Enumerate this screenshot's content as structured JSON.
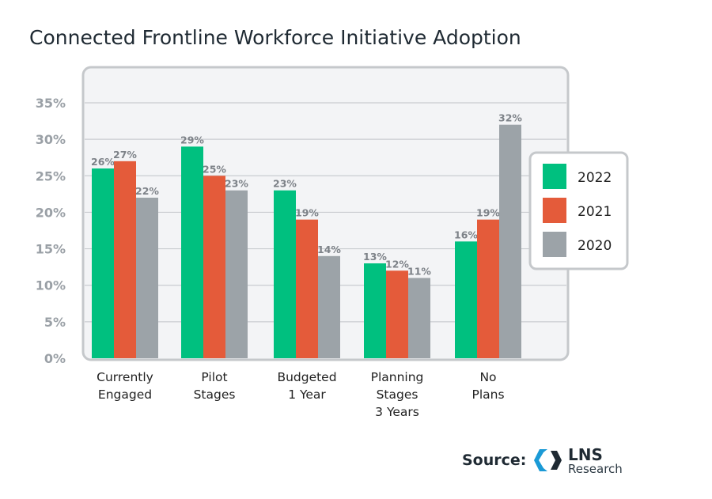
{
  "chart_data": {
    "type": "bar",
    "title": "Connected Frontline Workforce Initiative Adoption",
    "categories": [
      [
        "Currently",
        "Engaged"
      ],
      [
        "Pilot",
        "Stages"
      ],
      [
        "Budgeted",
        "1 Year"
      ],
      [
        "Planning",
        "Stages",
        "3 Years"
      ],
      [
        "No",
        "Plans"
      ]
    ],
    "series": [
      {
        "name": "2022",
        "color": "#00c07f",
        "values": [
          26,
          29,
          23,
          13,
          16
        ]
      },
      {
        "name": "2021",
        "color": "#e45b3a",
        "values": [
          27,
          25,
          19,
          12,
          19
        ]
      },
      {
        "name": "2020",
        "color": "#9ca3a8",
        "values": [
          22,
          23,
          14,
          11,
          32
        ]
      }
    ],
    "yticks": [
      "0%",
      "5%",
      "10%",
      "15%",
      "20%",
      "25%",
      "30%",
      "35%"
    ],
    "ylim": [
      0,
      35
    ],
    "grid": true,
    "legend_position": "right",
    "xlabel": "",
    "ylabel": ""
  },
  "source": {
    "label": "Source:",
    "logo_main": "LNS",
    "logo_sub": "Research"
  }
}
